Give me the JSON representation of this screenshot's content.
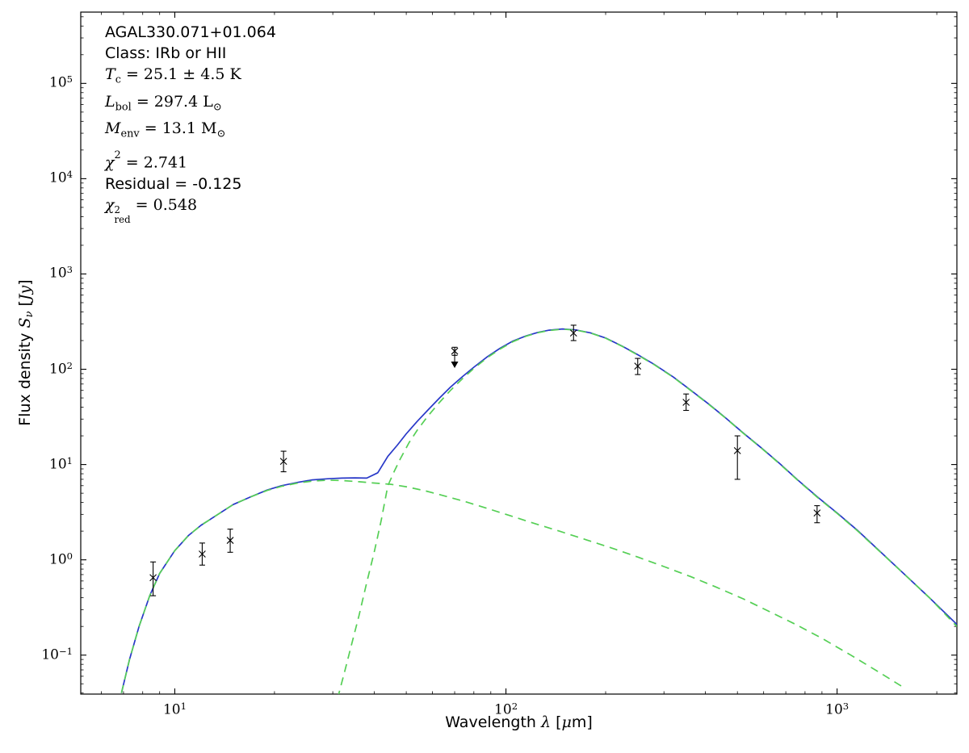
{
  "colors": {
    "model_total": "#2838c8",
    "model_components": "#55cf55",
    "data_points": "#000000",
    "frame": "#000000",
    "background": "#ffffff"
  },
  "fit_parameters": {
    "source": "AGAL330.071+01.064",
    "class": "IRb or HII",
    "T_c_K": 25.1,
    "T_c_err_K": 4.5,
    "L_bol_Lsun": 297.4,
    "M_env_Msun": 13.1,
    "chi2": 2.741,
    "residual": -0.125,
    "chi2_red": 0.548
  },
  "annotations": [
    {
      "name": "source-name",
      "segs": [
        [
          "AGAL330.071+01.064",
          "s",
          ""
        ]
      ]
    },
    {
      "name": "class-label",
      "segs": [
        [
          "Class: IRb or HII",
          "s",
          ""
        ]
      ]
    },
    {
      "name": "dust-temperature",
      "segs": [
        [
          "T",
          "i",
          ""
        ],
        [
          "c",
          "r",
          "sub"
        ],
        [
          " = 25.1 ± 4.5 K",
          "r",
          ""
        ]
      ]
    },
    {
      "name": "bolometric-luminosity",
      "segs": [
        [
          "L",
          "i",
          ""
        ],
        [
          "bol",
          "r",
          "sub"
        ],
        [
          " = 297.4 L",
          "r",
          ""
        ],
        [
          "⊙",
          "r",
          "sub"
        ]
      ]
    },
    {
      "name": "envelope-mass",
      "segs": [
        [
          "M",
          "i",
          ""
        ],
        [
          "env",
          "r",
          "sub"
        ],
        [
          " = 13.1 M",
          "r",
          ""
        ],
        [
          "⊙",
          "r",
          "sub"
        ]
      ]
    },
    {
      "name": "chi-squared",
      "segs": [
        [
          "χ",
          "i",
          ""
        ],
        [
          "2",
          "r",
          "sup"
        ],
        [
          " = 2.741",
          "r",
          ""
        ]
      ]
    },
    {
      "name": "residual",
      "segs": [
        [
          "Residual = -0.125",
          "s",
          ""
        ]
      ]
    },
    {
      "name": "reduced-chi-squared",
      "segs": [
        [
          "χ",
          "i",
          ""
        ],
        [
          "2|red",
          "r",
          "stack"
        ],
        [
          " = 0.548",
          "r",
          ""
        ]
      ]
    }
  ],
  "axes": {
    "xlabel_segments": [
      [
        "Wavelength ",
        "s",
        ""
      ],
      [
        "λ",
        "i",
        ""
      ],
      [
        " [",
        "s",
        ""
      ],
      [
        "μ",
        "i",
        ""
      ],
      [
        "m]",
        "s",
        ""
      ]
    ],
    "ylabel_segments": [
      [
        "Flux density ",
        "s",
        ""
      ],
      [
        "S",
        "i",
        ""
      ],
      [
        "ν",
        "i",
        "sub"
      ],
      [
        " [",
        "s",
        ""
      ],
      [
        "Jy",
        "i",
        ""
      ],
      [
        "]",
        "s",
        ""
      ]
    ],
    "x_tick_exponents": [
      1,
      2,
      3
    ],
    "y_tick_exponents": [
      5,
      4,
      3,
      2,
      1,
      0,
      -1
    ]
  },
  "chart_data": {
    "type": "line",
    "xscale": "log",
    "yscale": "log",
    "title": "",
    "xlabel": "Wavelength λ [μm]",
    "ylabel": "Flux density Sν [Jy]",
    "xlim": [
      5.2,
      2300
    ],
    "ylim": [
      0.039,
      560000
    ],
    "grid": false,
    "legend": false,
    "series": [
      {
        "name": "total-model",
        "style": "solid",
        "color_key": "model_total",
        "x": [
          6.9,
          7.3,
          7.8,
          8.4,
          9,
          10,
          11,
          12,
          13.5,
          15,
          17,
          19,
          21,
          23.5,
          26,
          29,
          32,
          35,
          38,
          41,
          44,
          47,
          50,
          54,
          58,
          63,
          68,
          74,
          80,
          88,
          96,
          105,
          115,
          125,
          135,
          148,
          162,
          180,
          200,
          225,
          250,
          280,
          320,
          360,
          410,
          460,
          520,
          590,
          670,
          760,
          870,
          1000,
          1150,
          1350,
          1600,
          1900,
          2300
        ],
        "y": [
          0.04,
          0.09,
          0.2,
          0.42,
          0.72,
          1.25,
          1.8,
          2.3,
          3.0,
          3.8,
          4.6,
          5.4,
          6.0,
          6.5,
          6.9,
          7.1,
          7.2,
          7.25,
          7.2,
          8.2,
          12.2,
          16,
          21,
          28.5,
          37,
          50,
          65,
          84,
          105,
          136,
          166,
          198,
          224,
          244,
          257,
          265,
          259,
          241,
          213,
          174,
          142,
          113,
          83,
          61,
          43,
          31,
          21.5,
          15,
          10.3,
          6.9,
          4.6,
          3.1,
          2.05,
          1.22,
          0.7,
          0.4,
          0.21
        ]
      },
      {
        "name": "warm-component",
        "style": "dashed",
        "color_key": "model_components",
        "x": [
          6.9,
          7.3,
          7.8,
          8.4,
          9,
          10,
          11,
          12,
          13.5,
          15,
          17,
          19,
          21,
          23.5,
          26,
          29,
          32,
          36,
          40,
          45,
          50,
          57,
          65,
          75,
          87,
          100,
          120,
          145,
          175,
          210,
          250,
          300,
          360,
          430,
          520,
          620,
          750,
          900,
          1100,
          1350,
          1600
        ],
        "y": [
          0.04,
          0.09,
          0.2,
          0.42,
          0.72,
          1.25,
          1.8,
          2.3,
          3.0,
          3.8,
          4.6,
          5.35,
          5.9,
          6.4,
          6.7,
          6.85,
          6.8,
          6.6,
          6.4,
          6.2,
          5.85,
          5.3,
          4.7,
          4.1,
          3.5,
          3.0,
          2.45,
          2.0,
          1.62,
          1.32,
          1.07,
          0.85,
          0.67,
          0.52,
          0.39,
          0.29,
          0.21,
          0.15,
          0.1,
          0.065,
          0.045
        ]
      },
      {
        "name": "cold-component",
        "style": "dashed",
        "color_key": "model_components",
        "x": [
          31,
          32.5,
          34,
          36,
          38,
          40,
          42,
          44,
          46,
          48,
          51,
          54,
          58,
          63,
          68,
          74,
          80,
          88,
          96,
          105,
          115,
          125,
          135,
          148,
          162,
          180,
          200,
          225,
          250,
          280,
          320,
          360,
          410,
          460,
          520,
          590,
          670,
          760,
          870,
          1000,
          1150,
          1350,
          1600,
          1900,
          2300
        ],
        "y": [
          0.035,
          0.065,
          0.12,
          0.26,
          0.58,
          1.2,
          2.6,
          6.0,
          8.5,
          11.5,
          17,
          23,
          32,
          45,
          60,
          80,
          102,
          133,
          163,
          195,
          222,
          242,
          255,
          263,
          258,
          240,
          212,
          173,
          141,
          112,
          82.5,
          60.5,
          42.7,
          30.8,
          21.4,
          14.9,
          10.2,
          6.85,
          4.55,
          3.07,
          2.03,
          1.21,
          0.7,
          0.4,
          0.2
        ]
      }
    ],
    "points": [
      {
        "x": 8.6,
        "y": 0.65,
        "lo": 0.42,
        "hi": 0.95,
        "upper_limit": false
      },
      {
        "x": 12.1,
        "y": 1.15,
        "lo": 0.88,
        "hi": 1.5,
        "upper_limit": false
      },
      {
        "x": 14.7,
        "y": 1.6,
        "lo": 1.2,
        "hi": 2.1,
        "upper_limit": false
      },
      {
        "x": 21.3,
        "y": 10.8,
        "lo": 8.4,
        "hi": 13.8,
        "upper_limit": false
      },
      {
        "x": 70,
        "y": 155,
        "lo": 140,
        "hi": 170,
        "upper_limit": true
      },
      {
        "x": 160,
        "y": 240,
        "lo": 200,
        "hi": 290,
        "upper_limit": false
      },
      {
        "x": 250,
        "y": 108,
        "lo": 88,
        "hi": 130,
        "upper_limit": false
      },
      {
        "x": 350,
        "y": 45,
        "lo": 37,
        "hi": 55,
        "upper_limit": false
      },
      {
        "x": 500,
        "y": 14,
        "lo": 7,
        "hi": 20,
        "upper_limit": false
      },
      {
        "x": 870,
        "y": 3.1,
        "lo": 2.45,
        "hi": 3.7,
        "upper_limit": false
      }
    ]
  }
}
